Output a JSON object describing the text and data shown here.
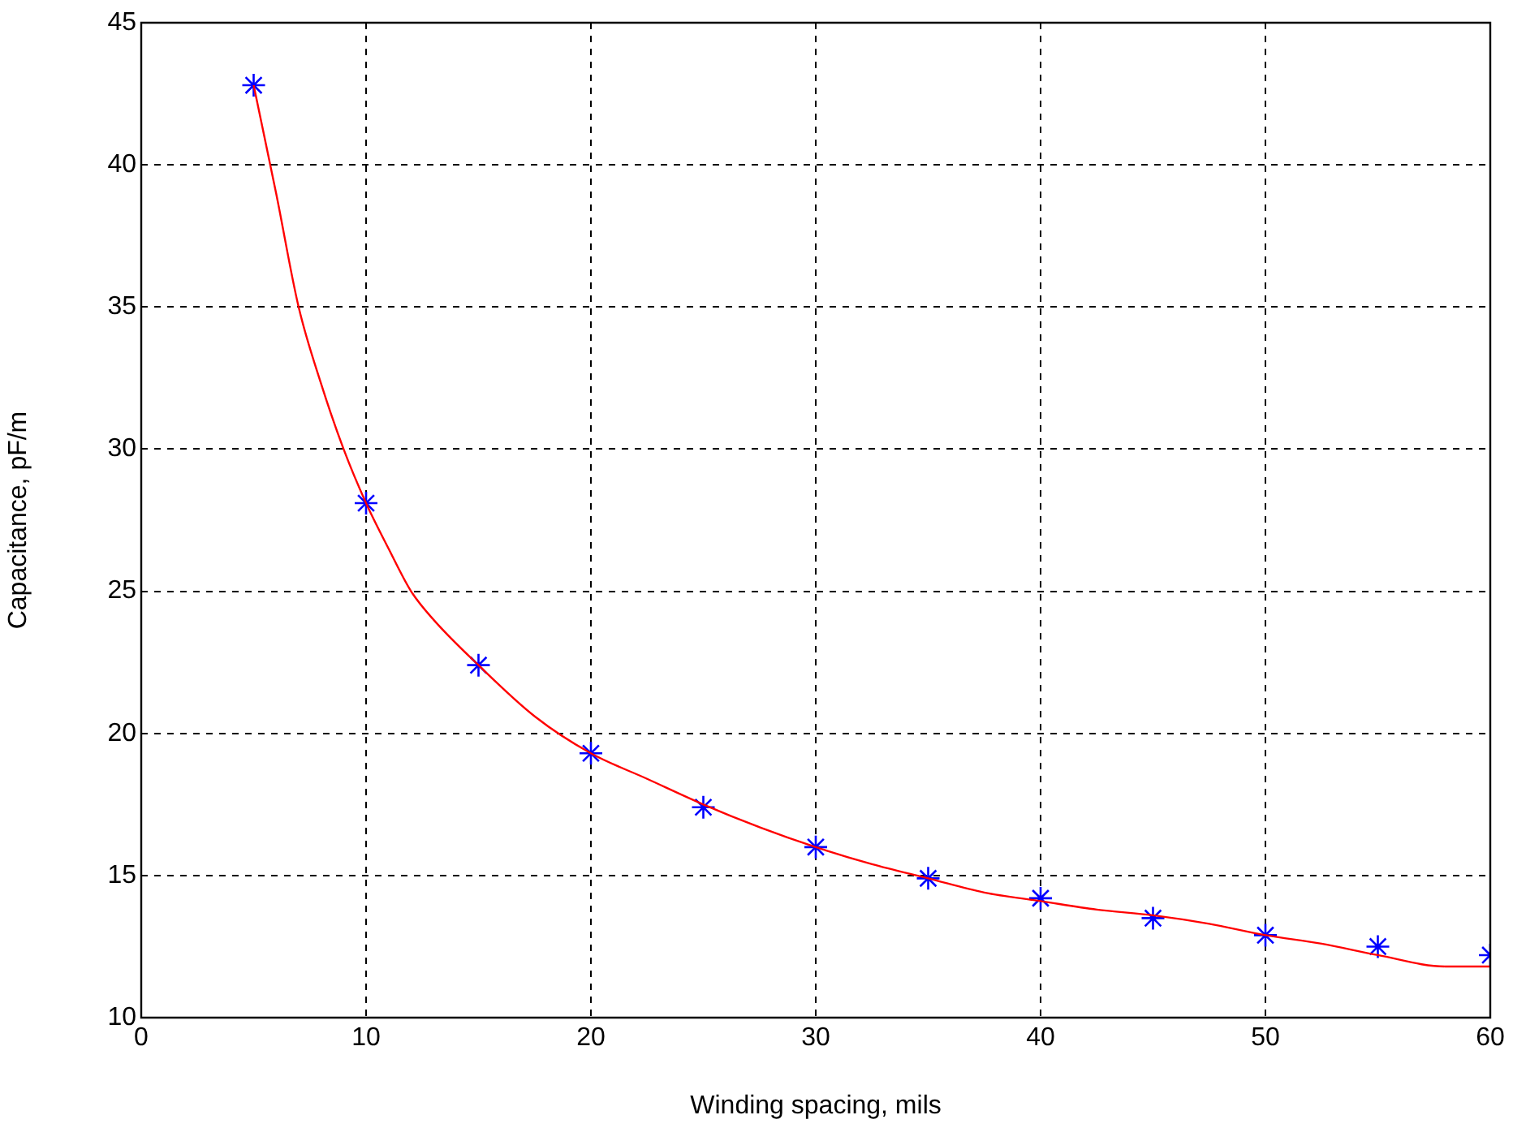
{
  "chart_data": {
    "type": "scatter",
    "xlabel": "Winding spacing, mils",
    "ylabel": "Capacitance, pF/m",
    "xlim": [
      0,
      60
    ],
    "xticks": [
      0,
      10,
      20,
      30,
      40,
      50,
      60
    ],
    "ylim": [
      10,
      45
    ],
    "yticks": [
      10,
      15,
      20,
      25,
      30,
      35,
      40,
      45
    ],
    "grid": true,
    "legend": false,
    "series": [
      {
        "type": "scatter",
        "color": "#0000ff",
        "marker": "cross",
        "x": [
          5,
          10,
          15,
          20,
          25,
          30,
          35,
          40,
          45,
          50,
          55,
          60
        ],
        "values": [
          42.8,
          28.1,
          22.4,
          19.3,
          17.4,
          16.0,
          14.9,
          14.2,
          13.5,
          12.9,
          12.5,
          12.2
        ]
      },
      {
        "type": "line",
        "color": "#ff0000",
        "marker": "none",
        "line_style": "solid",
        "x": [
          5,
          6,
          7,
          8,
          9,
          10,
          11,
          12,
          13,
          15,
          17.5,
          20,
          22.5,
          25,
          27.5,
          30,
          32.5,
          35,
          37.5,
          40,
          42.5,
          45,
          47.5,
          50,
          52.5,
          55,
          58,
          60
        ],
        "values": [
          42.8,
          39,
          35,
          32.3,
          30,
          28.1,
          26.5,
          25,
          24,
          22.4,
          20.6,
          19.3,
          18.4,
          17.5,
          16.7,
          16.0,
          15.4,
          14.9,
          14.4,
          14.1,
          13.8,
          13.6,
          13.3,
          12.9,
          12.6,
          12.2,
          11.8,
          11.8
        ]
      }
    ]
  }
}
